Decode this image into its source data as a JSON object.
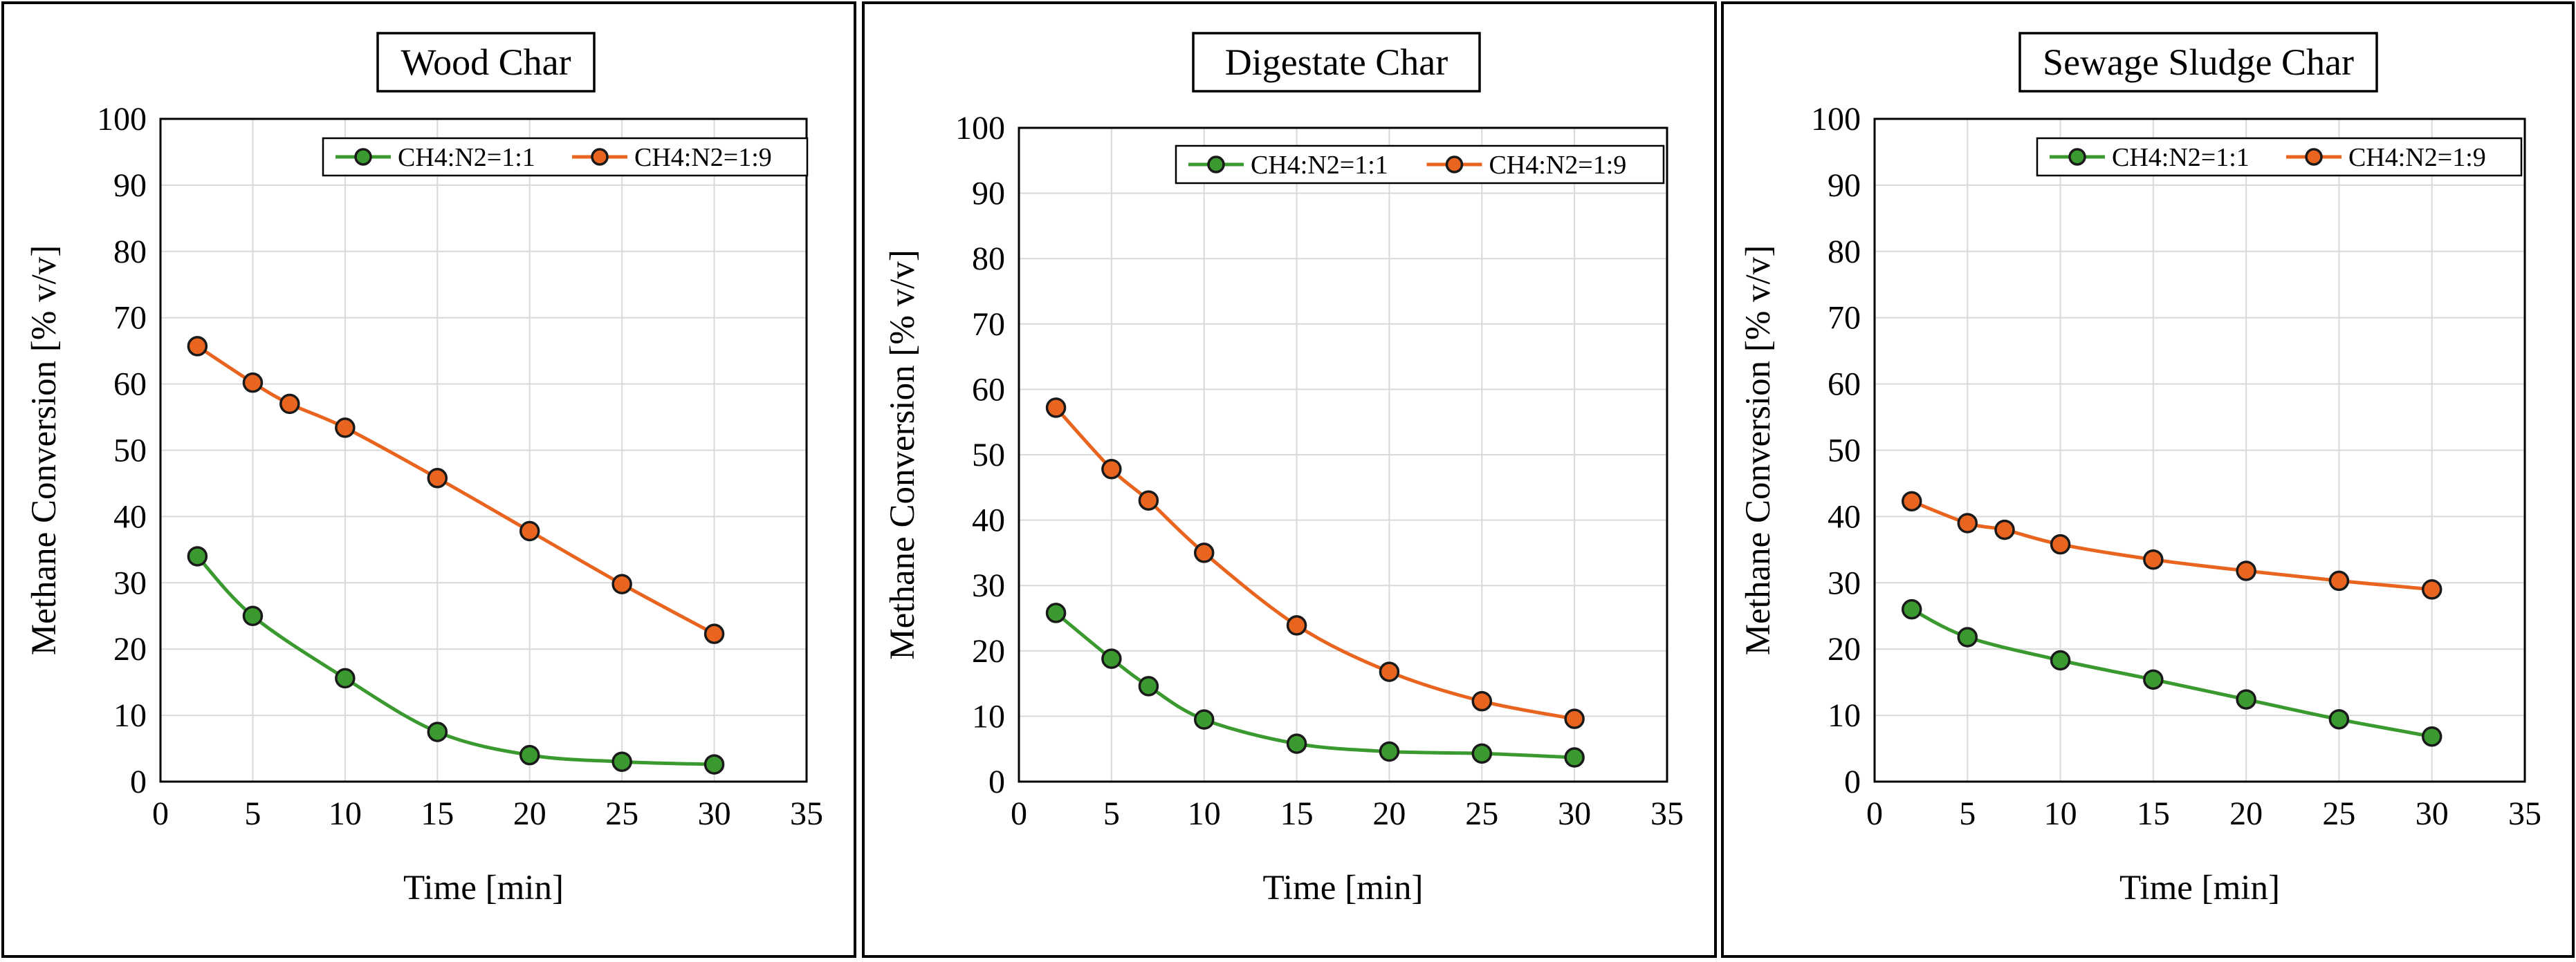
{
  "colors": {
    "series_1": "#3b9a2f",
    "series_2": "#e8641f",
    "marker_edge": "#1a1a1a"
  },
  "chart_data": [
    {
      "type": "line",
      "title": "Wood Char",
      "xlabel": "Time [min]",
      "ylabel": "Methane Conversion  [% v/v]",
      "xlim": [
        0,
        35
      ],
      "ylim": [
        0,
        100
      ],
      "xticks": [
        "0",
        "5",
        "10",
        "15",
        "20",
        "25",
        "30",
        "35"
      ],
      "yticks": [
        "0",
        "10",
        "20",
        "30",
        "40",
        "50",
        "60",
        "70",
        "80",
        "90",
        "100"
      ],
      "grid": true,
      "legend": "top-right",
      "series": [
        {
          "name": "CH4:N2=1:1",
          "x": [
            2,
            5,
            10,
            15,
            20,
            25,
            30
          ],
          "y": [
            34,
            25,
            15.6,
            7.5,
            4,
            3,
            2.6
          ]
        },
        {
          "name": "CH4:N2=1:9",
          "x": [
            2,
            5,
            7,
            10,
            15,
            20,
            25,
            30
          ],
          "y": [
            65.7,
            60.2,
            57,
            53.4,
            45.8,
            37.8,
            29.8,
            22.3
          ]
        }
      ]
    },
    {
      "type": "line",
      "title": "Digestate Char",
      "xlabel": "Time [min]",
      "ylabel": "Methane Conversion  [% v/v]",
      "xlim": [
        0,
        35
      ],
      "ylim": [
        0,
        100
      ],
      "xticks": [
        "0",
        "5",
        "10",
        "15",
        "20",
        "25",
        "30",
        "35"
      ],
      "yticks": [
        "0",
        "10",
        "20",
        "30",
        "40",
        "50",
        "60",
        "70",
        "80",
        "90",
        "100"
      ],
      "grid": true,
      "legend": "top-right",
      "series": [
        {
          "name": "CH4:N2=1:1",
          "x": [
            2,
            5,
            7,
            10,
            15,
            20,
            25,
            30
          ],
          "y": [
            25.8,
            18.8,
            14.6,
            9.5,
            5.8,
            4.6,
            4.3,
            3.7
          ]
        },
        {
          "name": "CH4:N2=1:9",
          "x": [
            2,
            5,
            7,
            10,
            15,
            20,
            25,
            30
          ],
          "y": [
            57.2,
            47.8,
            43,
            35,
            23.9,
            16.8,
            12.3,
            9.6
          ]
        }
      ]
    },
    {
      "type": "line",
      "title": "Sewage  Sludge Char",
      "xlabel": "Time [min]",
      "ylabel": "Methane Conversion  [% v/v]",
      "xlim": [
        0,
        35
      ],
      "ylim": [
        0,
        100
      ],
      "xticks": [
        "0",
        "5",
        "10",
        "15",
        "20",
        "25",
        "30",
        "35"
      ],
      "yticks": [
        "0",
        "10",
        "20",
        "30",
        "40",
        "50",
        "60",
        "70",
        "80",
        "90",
        "100"
      ],
      "grid": true,
      "legend": "top-right",
      "series": [
        {
          "name": "CH4:N2=1:1",
          "x": [
            2,
            5,
            10,
            15,
            20,
            25,
            30
          ],
          "y": [
            26,
            21.8,
            18.3,
            15.4,
            12.4,
            9.4,
            6.8
          ]
        },
        {
          "name": "CH4:N2=1:9",
          "x": [
            2,
            5,
            7,
            10,
            15,
            20,
            25,
            30
          ],
          "y": [
            42.3,
            39,
            38,
            35.8,
            33.5,
            31.8,
            30.3,
            29
          ]
        }
      ]
    }
  ]
}
